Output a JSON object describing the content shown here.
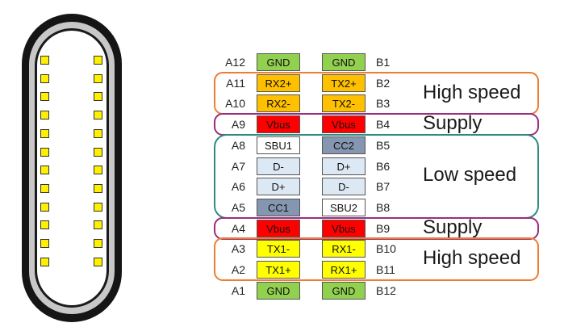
{
  "colors": {
    "gnd": "#92d050",
    "highspeed": "#ffc000",
    "highspeed_low": "#ffff00",
    "vbus": "#ff0000",
    "cc": "#8496b0",
    "sbu": "#ffffff",
    "data": "#dde8f5",
    "orange_box": "#ed7d31",
    "purple_box": "#9b2d7a",
    "teal_box": "#2e8b80"
  },
  "left_pins": [
    {
      "pin": "A12",
      "signal": "GND",
      "kind": "gnd"
    },
    {
      "pin": "A11",
      "signal": "RX2+",
      "kind": "highspeed"
    },
    {
      "pin": "A10",
      "signal": "RX2-",
      "kind": "highspeed"
    },
    {
      "pin": "A9",
      "signal": "Vbus",
      "kind": "vbus"
    },
    {
      "pin": "A8",
      "signal": "SBU1",
      "kind": "sbu"
    },
    {
      "pin": "A7",
      "signal": "D-",
      "kind": "data"
    },
    {
      "pin": "A6",
      "signal": "D+",
      "kind": "data"
    },
    {
      "pin": "A5",
      "signal": "CC1",
      "kind": "cc"
    },
    {
      "pin": "A4",
      "signal": "Vbus",
      "kind": "vbus"
    },
    {
      "pin": "A3",
      "signal": "TX1-",
      "kind": "highspeed_low"
    },
    {
      "pin": "A2",
      "signal": "TX1+",
      "kind": "highspeed_low"
    },
    {
      "pin": "A1",
      "signal": "GND",
      "kind": "gnd"
    }
  ],
  "right_pins": [
    {
      "pin": "B1",
      "signal": "GND",
      "kind": "gnd"
    },
    {
      "pin": "B2",
      "signal": "TX2+",
      "kind": "highspeed"
    },
    {
      "pin": "B3",
      "signal": "TX2-",
      "kind": "highspeed"
    },
    {
      "pin": "B4",
      "signal": "Vbus",
      "kind": "vbus"
    },
    {
      "pin": "B5",
      "signal": "CC2",
      "kind": "cc"
    },
    {
      "pin": "B6",
      "signal": "D+",
      "kind": "data"
    },
    {
      "pin": "B7",
      "signal": "D-",
      "kind": "data"
    },
    {
      "pin": "B8",
      "signal": "SBU2",
      "kind": "sbu"
    },
    {
      "pin": "B9",
      "signal": "Vbus",
      "kind": "vbus"
    },
    {
      "pin": "B10",
      "signal": "RX1-",
      "kind": "highspeed_low"
    },
    {
      "pin": "B11",
      "signal": "RX1+",
      "kind": "highspeed_low"
    },
    {
      "pin": "B12",
      "signal": "GND",
      "kind": "gnd"
    }
  ],
  "groups": [
    {
      "label": "High speed",
      "color": "orange_box"
    },
    {
      "label": "Supply",
      "color": "purple_box"
    },
    {
      "label": "Low speed",
      "color": "teal_box"
    },
    {
      "label": "Supply",
      "color": "purple_box"
    },
    {
      "label": "High speed",
      "color": "orange_box"
    }
  ],
  "connector": {
    "contacts_per_side": 12
  }
}
